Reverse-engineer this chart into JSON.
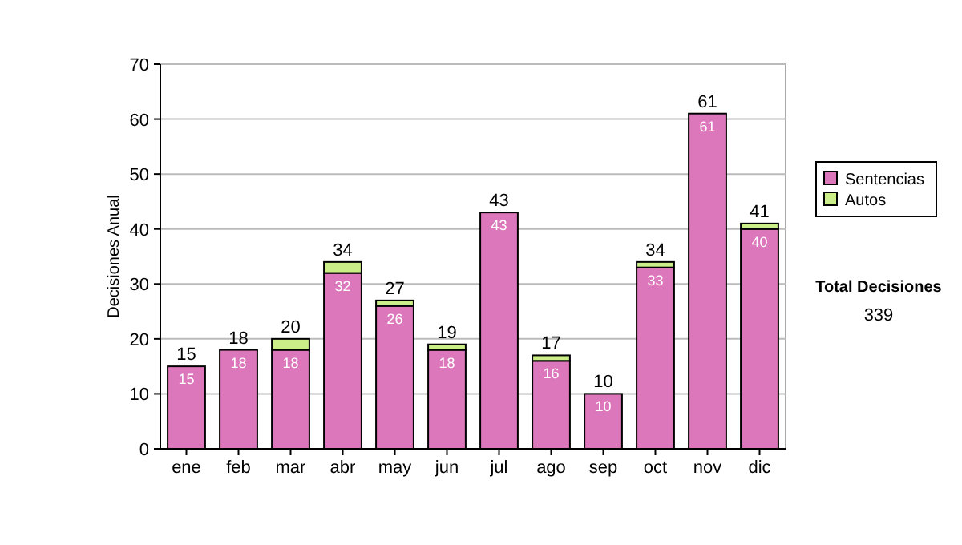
{
  "chart_data": {
    "type": "bar",
    "ylabel": "Decisiones Anual",
    "categories": [
      "ene",
      "feb",
      "mar",
      "abr",
      "may",
      "jun",
      "jul",
      "ago",
      "sep",
      "oct",
      "nov",
      "dic"
    ],
    "stacked": true,
    "ylim": [
      0,
      70
    ],
    "yticks": [
      0,
      10,
      20,
      30,
      40,
      50,
      60,
      70
    ],
    "grid": "y",
    "legend": "right",
    "series": [
      {
        "name": "Sentencias",
        "color": "#dd77bb",
        "values": [
          15,
          18,
          18,
          32,
          26,
          18,
          43,
          16,
          10,
          33,
          61,
          40
        ],
        "value_labels": [
          "15",
          "18",
          "18",
          "32",
          "26",
          "18",
          "43",
          "16",
          "10",
          "33",
          "61",
          "40"
        ]
      },
      {
        "name": "Autos",
        "color": "#ccee88",
        "values": [
          0,
          0,
          2,
          2,
          1,
          1,
          0,
          1,
          0,
          1,
          0,
          1
        ]
      }
    ],
    "totals": [
      "15",
      "18",
      "20",
      "34",
      "27",
      "19",
      "43",
      "17",
      "10",
      "34",
      "61",
      "41"
    ],
    "annotations": [
      "Total Decisiones",
      "339"
    ]
  }
}
